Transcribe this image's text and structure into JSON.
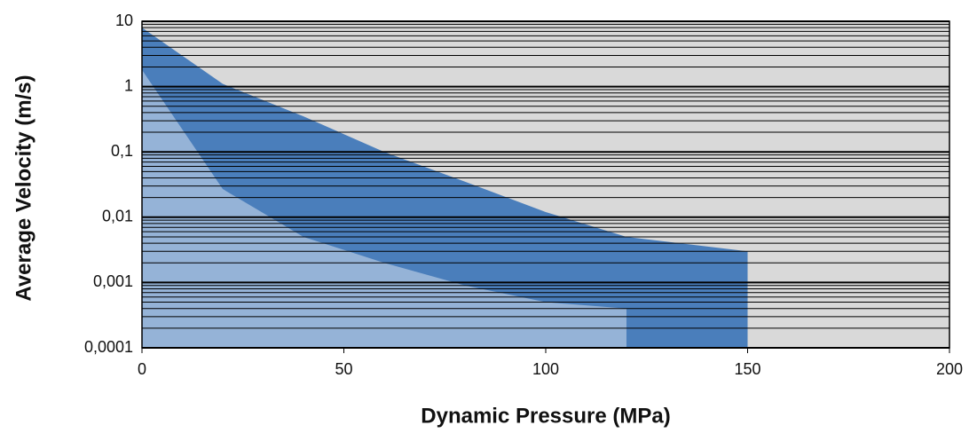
{
  "chart_data": {
    "type": "area",
    "log_y": true,
    "grid": true,
    "minor_grid": true,
    "xlabel": "Dynamic Pressure (MPa)",
    "ylabel": "Average Velocity (m/s)",
    "xlim": [
      0,
      200
    ],
    "xticks": [
      0,
      50,
      100,
      150,
      200
    ],
    "ylim": [
      0.0001,
      10
    ],
    "yticks": [
      {
        "value": 0.0001,
        "label": "0,0001"
      },
      {
        "value": 0.001,
        "label": "0,001"
      },
      {
        "value": 0.01,
        "label": "0,01"
      },
      {
        "value": 0.1,
        "label": "0,1"
      },
      1,
      10
    ],
    "background": "#d9d9d9",
    "series": [
      {
        "color": "#4a7ebb",
        "x": [
          0,
          20,
          40,
          60,
          80,
          100,
          120,
          150
        ],
        "values": [
          8,
          1.1,
          0.35,
          0.1,
          0.035,
          0.012,
          0.005,
          0.003
        ]
      },
      {
        "color": "#95b3d7",
        "x": [
          0,
          20,
          40,
          60,
          80,
          100,
          120
        ],
        "values": [
          1.8,
          0.027,
          0.005,
          0.002,
          0.0009,
          0.0005,
          0.0004
        ]
      }
    ]
  }
}
